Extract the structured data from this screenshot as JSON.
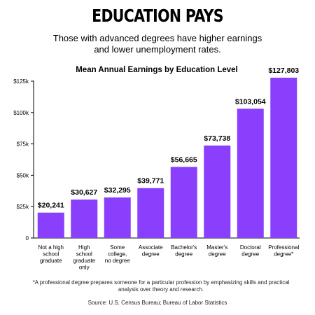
{
  "header": {
    "title": "EDUCATION PAYS",
    "subtitle": "Those with advanced degrees have higher earnings and lower unemployment rates."
  },
  "chart_data": {
    "type": "bar",
    "title": "Mean Annual Earnings by Education Level",
    "xlabel": "",
    "ylabel": "",
    "ylim": [
      0,
      125000
    ],
    "yticks": [
      0,
      25000,
      50000,
      75000,
      100000,
      125000
    ],
    "ytick_labels": [
      "0",
      "$25k",
      "$50k",
      "$75k",
      "$100k",
      "$125k"
    ],
    "categories": [
      "Not a high school graduate",
      "High school graduate only",
      "Some college, no degree",
      "Associate degree",
      "Bachelor's degree",
      "Master's degree",
      "Doctoral degree",
      "Professional degree*"
    ],
    "category_lines": [
      [
        "Not a high",
        "school",
        "graduate"
      ],
      [
        "High",
        "school",
        "graduate",
        "only"
      ],
      [
        "Some",
        "college,",
        "no degree"
      ],
      [
        "Associate",
        "degree"
      ],
      [
        "Bachelor's",
        "degree"
      ],
      [
        "Master's",
        "degree"
      ],
      [
        "Doctoral",
        "degree"
      ],
      [
        "Professional",
        "degree*"
      ]
    ],
    "values": [
      20241,
      30627,
      32295,
      39771,
      56665,
      73738,
      103054,
      127803
    ],
    "value_labels": [
      "$20,241",
      "$30,627",
      "$32,295",
      "$39,771",
      "$56,665",
      "$73,738",
      "$103,054",
      "$127,803"
    ],
    "bar_color": "#8a3ffc",
    "grid": false
  },
  "footnote": "*A professional degree prepares someone for a particular profession by emphasizing skills and practical analysis over theory and research.",
  "source": "Source: U.S. Census Bureau; Bureau of Labor Statistics"
}
